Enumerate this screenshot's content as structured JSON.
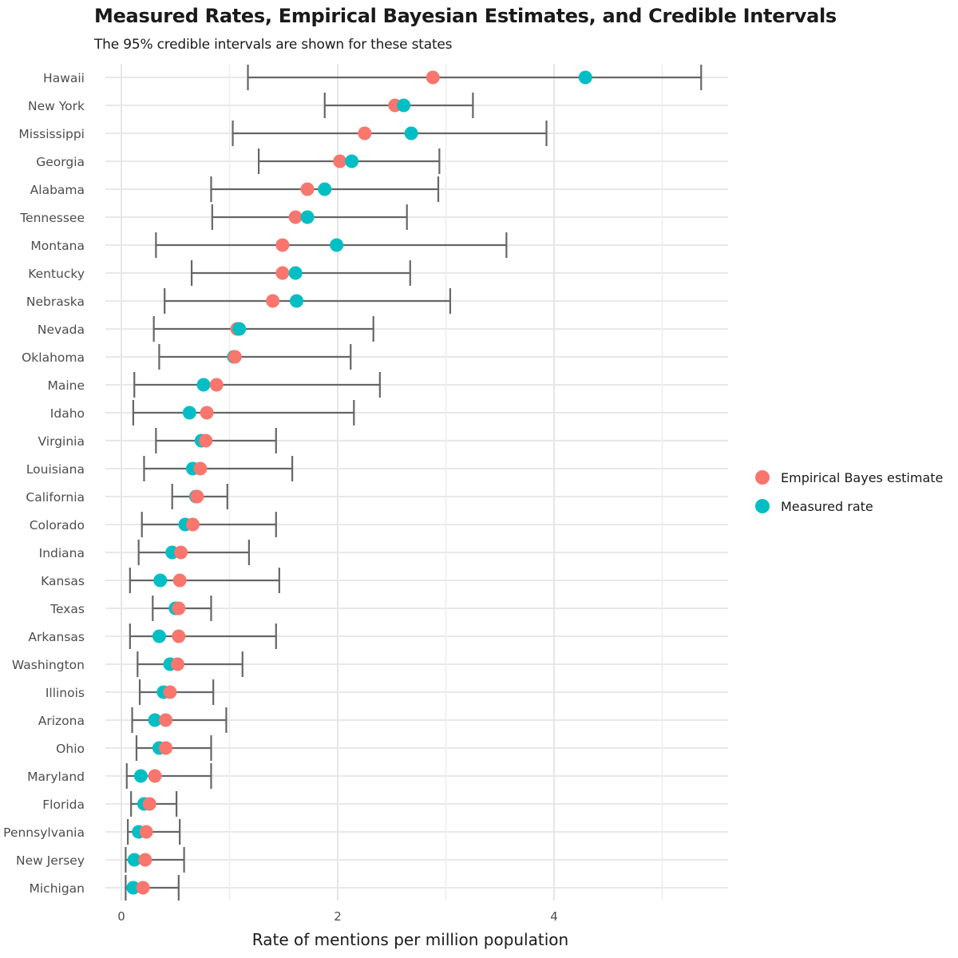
{
  "chart_data": {
    "type": "dot-interval",
    "title": "Measured Rates, Empirical Bayesian Estimates, and Credible Intervals",
    "subtitle": "The 95% credible intervals are shown for these states",
    "xlabel": "Rate of mentions per million population",
    "ylabel": "",
    "xlim": [
      -0.15,
      5.65
    ],
    "x_ticks": [
      0,
      2,
      4
    ],
    "x_gridlines": [
      0,
      1,
      2,
      3,
      4,
      5
    ],
    "grid": true,
    "legend_position": "right",
    "colors": {
      "empirical_bayes": "#F8766D",
      "measured": "#00BFC4",
      "interval": "#666666"
    },
    "series": [
      {
        "name": "Empirical Bayes estimate",
        "key": "eb"
      },
      {
        "name": "Measured rate",
        "key": "measured"
      }
    ],
    "states": [
      {
        "name": "Hawaii",
        "eb": 2.88,
        "measured": 4.29,
        "lo": 1.17,
        "hi": 5.36
      },
      {
        "name": "New York",
        "eb": 2.53,
        "measured": 2.61,
        "lo": 1.88,
        "hi": 3.25
      },
      {
        "name": "Mississippi",
        "eb": 2.25,
        "measured": 2.68,
        "lo": 1.03,
        "hi": 3.93
      },
      {
        "name": "Georgia",
        "eb": 2.02,
        "measured": 2.13,
        "lo": 1.27,
        "hi": 2.94
      },
      {
        "name": "Alabama",
        "eb": 1.72,
        "measured": 1.88,
        "lo": 0.83,
        "hi": 2.93
      },
      {
        "name": "Tennessee",
        "eb": 1.61,
        "measured": 1.72,
        "lo": 0.84,
        "hi": 2.64
      },
      {
        "name": "Montana",
        "eb": 1.49,
        "measured": 1.99,
        "lo": 0.32,
        "hi": 3.56
      },
      {
        "name": "Kentucky",
        "eb": 1.49,
        "measured": 1.61,
        "lo": 0.65,
        "hi": 2.67
      },
      {
        "name": "Nebraska",
        "eb": 1.4,
        "measured": 1.62,
        "lo": 0.4,
        "hi": 3.04
      },
      {
        "name": "Nevada",
        "eb": 1.07,
        "measured": 1.09,
        "lo": 0.3,
        "hi": 2.33
      },
      {
        "name": "Oklahoma",
        "eb": 1.05,
        "measured": 1.04,
        "lo": 0.35,
        "hi": 2.12
      },
      {
        "name": "Maine",
        "eb": 0.88,
        "measured": 0.76,
        "lo": 0.12,
        "hi": 2.39
      },
      {
        "name": "Idaho",
        "eb": 0.79,
        "measured": 0.63,
        "lo": 0.11,
        "hi": 2.15
      },
      {
        "name": "Virginia",
        "eb": 0.78,
        "measured": 0.74,
        "lo": 0.32,
        "hi": 1.43
      },
      {
        "name": "Louisiana",
        "eb": 0.73,
        "measured": 0.66,
        "lo": 0.21,
        "hi": 1.58
      },
      {
        "name": "California",
        "eb": 0.7,
        "measured": 0.69,
        "lo": 0.47,
        "hi": 0.98
      },
      {
        "name": "Colorado",
        "eb": 0.66,
        "measured": 0.59,
        "lo": 0.19,
        "hi": 1.43
      },
      {
        "name": "Indiana",
        "eb": 0.55,
        "measured": 0.47,
        "lo": 0.16,
        "hi": 1.18
      },
      {
        "name": "Kansas",
        "eb": 0.54,
        "measured": 0.36,
        "lo": 0.08,
        "hi": 1.46
      },
      {
        "name": "Texas",
        "eb": 0.53,
        "measured": 0.5,
        "lo": 0.29,
        "hi": 0.83
      },
      {
        "name": "Arkansas",
        "eb": 0.53,
        "measured": 0.35,
        "lo": 0.08,
        "hi": 1.43
      },
      {
        "name": "Washington",
        "eb": 0.52,
        "measured": 0.45,
        "lo": 0.15,
        "hi": 1.12
      },
      {
        "name": "Illinois",
        "eb": 0.45,
        "measured": 0.39,
        "lo": 0.17,
        "hi": 0.85
      },
      {
        "name": "Arizona",
        "eb": 0.41,
        "measured": 0.31,
        "lo": 0.1,
        "hi": 0.97
      },
      {
        "name": "Ohio",
        "eb": 0.41,
        "measured": 0.35,
        "lo": 0.14,
        "hi": 0.83
      },
      {
        "name": "Maryland",
        "eb": 0.31,
        "measured": 0.18,
        "lo": 0.05,
        "hi": 0.83
      },
      {
        "name": "Florida",
        "eb": 0.26,
        "measured": 0.21,
        "lo": 0.09,
        "hi": 0.51
      },
      {
        "name": "Pennsylvania",
        "eb": 0.23,
        "measured": 0.16,
        "lo": 0.06,
        "hi": 0.54
      },
      {
        "name": "New Jersey",
        "eb": 0.22,
        "measured": 0.12,
        "lo": 0.04,
        "hi": 0.58
      },
      {
        "name": "Michigan",
        "eb": 0.2,
        "measured": 0.11,
        "lo": 0.04,
        "hi": 0.53
      }
    ]
  }
}
